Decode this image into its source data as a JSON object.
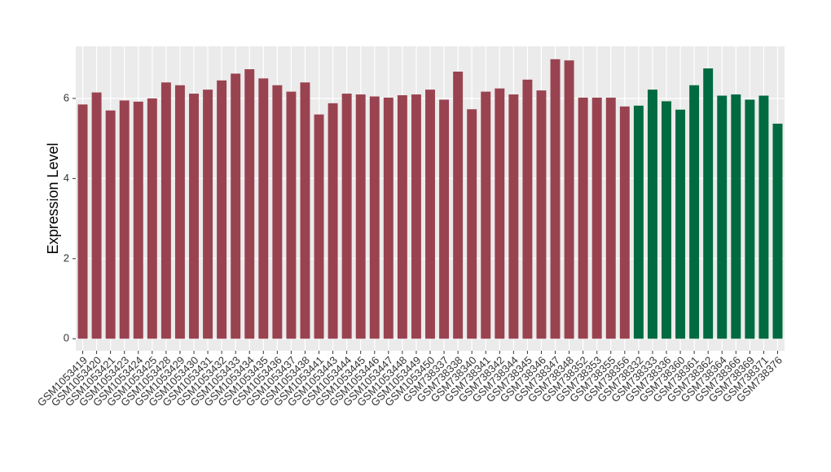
{
  "chart_data": {
    "type": "bar",
    "y_label": "Expression Level",
    "categories": [
      "GSM1053419",
      "GSM1053420",
      "GSM1053421",
      "GSM1053423",
      "GSM1053424",
      "GSM1053425",
      "GSM1053428",
      "GSM1053429",
      "GSM1053430",
      "GSM1053431",
      "GSM1053432",
      "GSM1053433",
      "GSM1053434",
      "GSM1053435",
      "GSM1053436",
      "GSM1053437",
      "GSM1053438",
      "GSM1053441",
      "GSM1053443",
      "GSM1053444",
      "GSM1053445",
      "GSM1053446",
      "GSM1053447",
      "GSM1053448",
      "GSM1053449",
      "GSM1053450",
      "GSM738337",
      "GSM738338",
      "GSM738340",
      "GSM738341",
      "GSM738342",
      "GSM738344",
      "GSM738345",
      "GSM738346",
      "GSM738347",
      "GSM738348",
      "GSM738352",
      "GSM738353",
      "GSM738355",
      "GSM738356",
      "GSM738332",
      "GSM738333",
      "GSM738336",
      "GSM738360",
      "GSM738361",
      "GSM738362",
      "GSM738364",
      "GSM738366",
      "GSM738369",
      "GSM738371",
      "GSM738376"
    ],
    "values": [
      5.85,
      6.15,
      5.7,
      5.95,
      5.92,
      6.0,
      6.4,
      6.33,
      6.12,
      6.22,
      6.45,
      6.62,
      6.73,
      6.5,
      6.33,
      6.17,
      6.4,
      5.6,
      5.88,
      6.12,
      6.1,
      6.05,
      6.02,
      6.08,
      6.1,
      6.22,
      5.97,
      6.67,
      5.73,
      6.17,
      6.25,
      6.1,
      6.47,
      6.2,
      6.98,
      6.95,
      6.02,
      6.02,
      6.02,
      5.8,
      5.82,
      6.22,
      5.93,
      5.72,
      6.33,
      6.75,
      6.07,
      6.1,
      5.97,
      6.07,
      5.37
    ],
    "colors": [
      "#9a4350",
      "#9a4350",
      "#9a4350",
      "#9a4350",
      "#9a4350",
      "#9a4350",
      "#9a4350",
      "#9a4350",
      "#9a4350",
      "#9a4350",
      "#9a4350",
      "#9a4350",
      "#9a4350",
      "#9a4350",
      "#9a4350",
      "#9a4350",
      "#9a4350",
      "#9a4350",
      "#9a4350",
      "#9a4350",
      "#9a4350",
      "#9a4350",
      "#9a4350",
      "#9a4350",
      "#9a4350",
      "#9a4350",
      "#9a4350",
      "#9a4350",
      "#9a4350",
      "#9a4350",
      "#9a4350",
      "#9a4350",
      "#9a4350",
      "#9a4350",
      "#9a4350",
      "#9a4350",
      "#9a4350",
      "#9a4350",
      "#9a4350",
      "#9a4350",
      "#006a40",
      "#006a40",
      "#006a40",
      "#006a40",
      "#006a40",
      "#006a40",
      "#006a40",
      "#006a40",
      "#006a40",
      "#006a40",
      "#006a40"
    ],
    "ylim": [
      -0.3,
      7.3
    ],
    "yticks": [
      0,
      2,
      4,
      6
    ],
    "grid": true
  }
}
